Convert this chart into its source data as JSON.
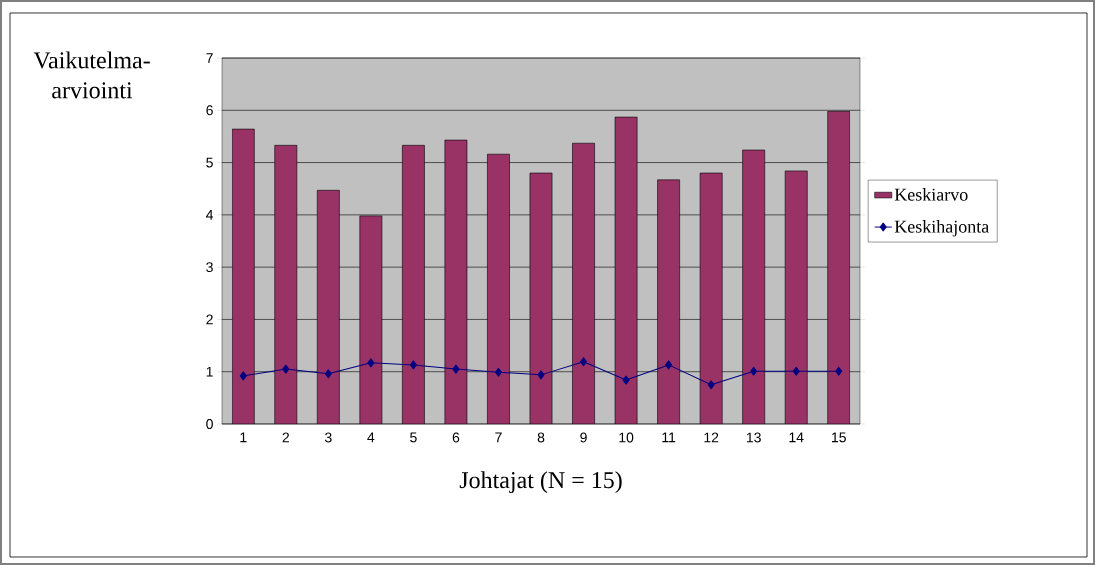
{
  "chart_data": {
    "type": "bar",
    "xlabel": "Johtajat (N = 15)",
    "ylabel": "Vaikutelma-arviointi",
    "categories": [
      "1",
      "2",
      "3",
      "4",
      "5",
      "6",
      "7",
      "8",
      "9",
      "10",
      "11",
      "12",
      "13",
      "14",
      "15"
    ],
    "series": [
      {
        "name": "Keskiarvo",
        "color": "#993366",
        "values": [
          5.64,
          5.33,
          4.47,
          3.98,
          5.33,
          5.43,
          5.16,
          4.8,
          5.37,
          5.87,
          4.67,
          4.8,
          5.24,
          4.84,
          5.98
        ]
      },
      {
        "name": "Keskihajonta",
        "type": "line",
        "color": "#000080",
        "marker": "diamond",
        "values": [
          0.92,
          1.05,
          0.96,
          1.17,
          1.13,
          1.05,
          0.99,
          0.94,
          1.19,
          0.84,
          1.13,
          0.75,
          1.01,
          1.01,
          1.01
        ]
      }
    ],
    "ylim": [
      0,
      7
    ],
    "yticks": [
      0,
      1,
      2,
      3,
      4,
      5,
      6,
      7
    ],
    "grid": "y",
    "legend": "right"
  }
}
